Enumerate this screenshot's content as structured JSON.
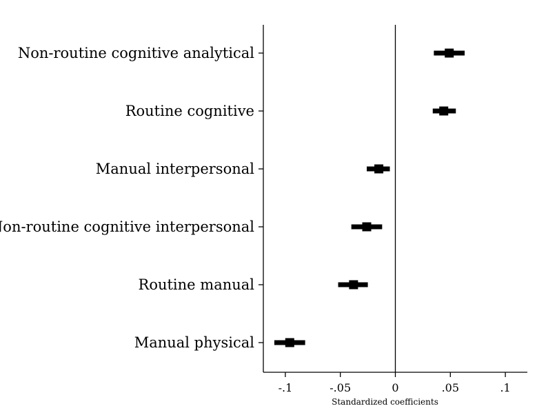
{
  "chart_data": {
    "type": "scatter",
    "orientation": "horizontal-coefficient-plot",
    "title": "",
    "xlabel": "Standardized coefficients",
    "ylabel": "",
    "xlim": [
      -0.12,
      0.12
    ],
    "xticks": [
      -0.1,
      -0.05,
      0,
      0.05,
      0.1
    ],
    "xtick_labels": [
      "-.1",
      "-.05",
      "0",
      ".05",
      ".1"
    ],
    "reference_line": 0,
    "grid": false,
    "categories": [
      "Non-routine cognitive analytical",
      "Routine cognitive",
      "Manual interpersonal",
      "Non-routine cognitive interpersonal",
      "Routine manual",
      "Manual physical"
    ],
    "estimates": [
      0.049,
      0.044,
      -0.015,
      -0.026,
      -0.038,
      -0.096
    ],
    "ci_low": [
      0.035,
      0.034,
      -0.026,
      -0.04,
      -0.052,
      -0.11
    ],
    "ci_high": [
      0.063,
      0.055,
      -0.005,
      -0.012,
      -0.025,
      -0.082
    ],
    "colors": {
      "marker": "#000000",
      "axis": "#000000"
    }
  }
}
